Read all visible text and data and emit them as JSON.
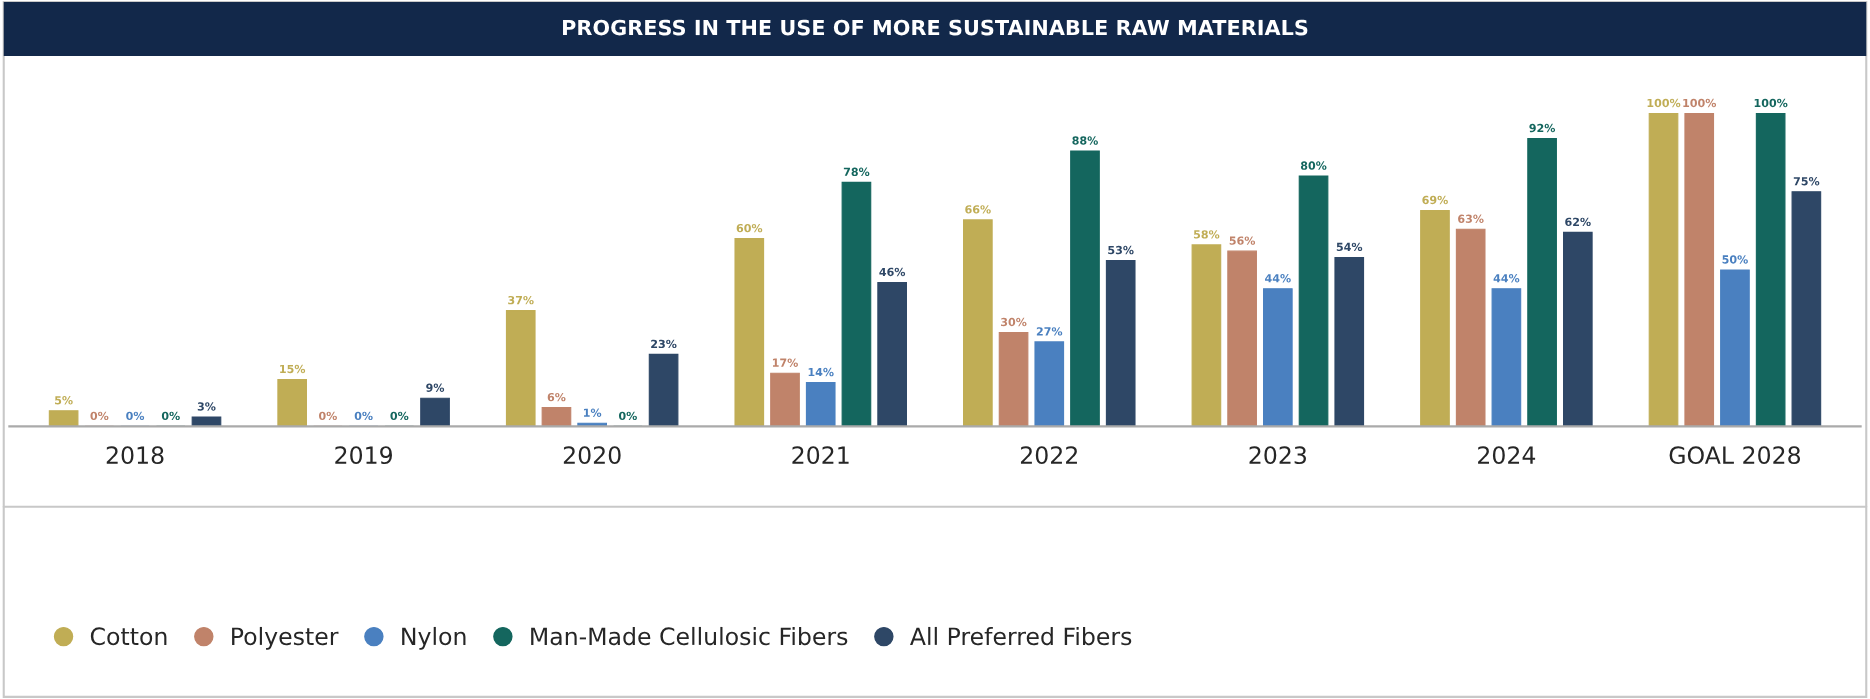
{
  "chart_data": {
    "type": "bar",
    "title": "PROGRESS IN THE USE OF MORE SUSTAINABLE RAW MATERIALS",
    "categories": [
      "2018",
      "2019",
      "2020",
      "2021",
      "2022",
      "2023",
      "2024",
      "GOAL 2028"
    ],
    "series": [
      {
        "name": "Cotton",
        "color": "#c0ad55",
        "values": [
          5,
          15,
          37,
          60,
          66,
          58,
          69,
          100
        ],
        "value_labels": [
          "5%",
          "15%",
          "37%",
          "60%",
          "66%",
          "58%",
          "69%",
          "100%"
        ]
      },
      {
        "name": "Polyester",
        "color": "#c0836a",
        "values": [
          0,
          0,
          6,
          17,
          30,
          56,
          63,
          100
        ],
        "value_labels": [
          "0%",
          "0%",
          "6%",
          "17%",
          "30%",
          "56%",
          "63%",
          "100%"
        ]
      },
      {
        "name": "Nylon",
        "color": "#4a80c0",
        "values": [
          0,
          0,
          1,
          14,
          27,
          44,
          44,
          50
        ],
        "value_labels": [
          "0%",
          "0%",
          "1%",
          "14%",
          "27%",
          "44%",
          "44%",
          "50%"
        ]
      },
      {
        "name": "Man-Made Cellulosic Fibers",
        "color": "#14665e",
        "values": [
          0,
          0,
          0,
          78,
          88,
          80,
          92,
          100
        ],
        "value_labels": [
          "0%",
          "0%",
          "0%",
          "78%",
          "88%",
          "80%",
          "92%",
          "100%"
        ]
      },
      {
        "name": "All Preferred Fibers",
        "color": "#2e4766",
        "values": [
          3,
          9,
          23,
          46,
          53,
          54,
          62,
          75
        ],
        "value_labels": [
          "3%",
          "9%",
          "23%",
          "46%",
          "53%",
          "54%",
          "62%",
          "75%"
        ]
      }
    ],
    "legend": "bottom",
    "grid": false,
    "tick_labels": "x"
  }
}
